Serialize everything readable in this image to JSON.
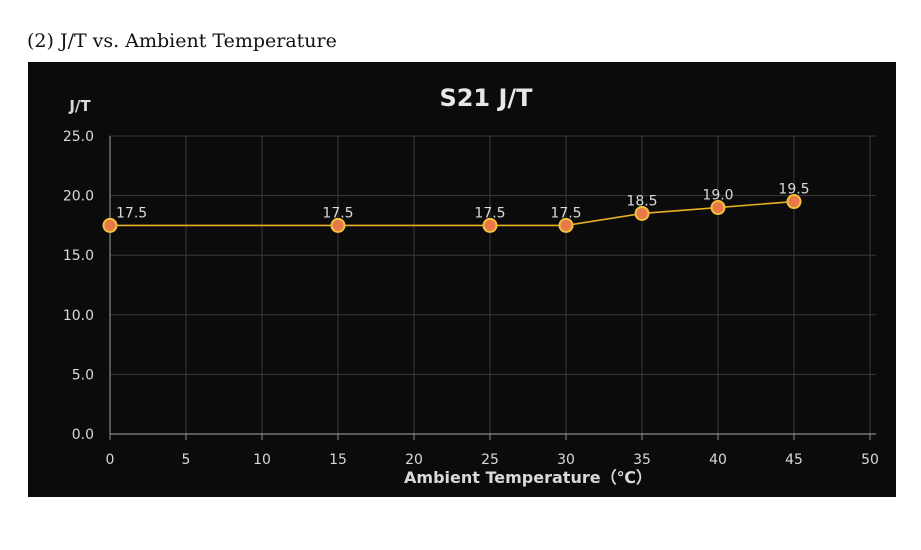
{
  "caption": "(2)  J/T vs. Ambient Temperature",
  "colors": {
    "background": "#0b0b0b",
    "line": "#e6b020",
    "marker_fill": "#e8784a",
    "marker_stroke": "#f2c23a",
    "grid": "#3a3a3a",
    "text": "#d9d9d9"
  },
  "chart_data": {
    "type": "line",
    "title": "S21 J/T",
    "ylabel": "J/T",
    "xlabel": "Ambient Temperature（℃）",
    "xlim": [
      0,
      50
    ],
    "ylim": [
      0,
      25
    ],
    "xticks": [
      0,
      5,
      10,
      15,
      20,
      25,
      30,
      35,
      40,
      45,
      50
    ],
    "yticks": [
      0.0,
      5.0,
      10.0,
      15.0,
      20.0,
      25.0
    ],
    "ytick_labels": [
      "0.0",
      "5.0",
      "10.0",
      "15.0",
      "20.0",
      "25.0"
    ],
    "grid": true,
    "legend": "none",
    "series": [
      {
        "x": [
          0,
          15,
          25,
          30,
          35,
          40,
          45
        ],
        "y": [
          17.5,
          17.5,
          17.5,
          17.5,
          18.5,
          19.0,
          19.5
        ],
        "labels": [
          "17.5",
          "17.5",
          "17.5",
          "17.5",
          "18.5",
          "19.0",
          "19.5"
        ]
      }
    ]
  }
}
